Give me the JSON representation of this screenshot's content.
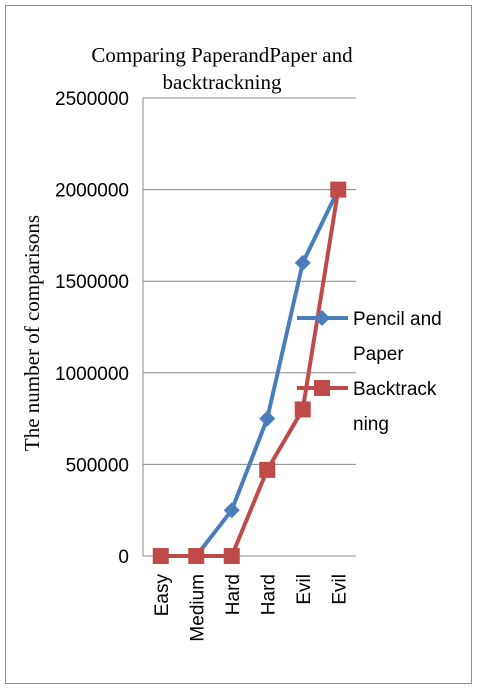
{
  "chart_data": {
    "type": "line",
    "title_lines": [
      "Comparing PaperandPaper and",
      "backtrackning"
    ],
    "ylabel": "The number of comparisons",
    "xlabel": "",
    "categories": [
      "Easy",
      "Medium",
      "Hard",
      "Hard",
      "Evil",
      "Evil"
    ],
    "y_ticks": [
      "2500000",
      "2000000",
      "1500000",
      "1000000",
      "500000",
      "0"
    ],
    "ylim": [
      0,
      2500000
    ],
    "grid": true,
    "legend_position": "right",
    "series": [
      {
        "name_lines": [
          "Pencil and",
          "Paper"
        ],
        "color": "#4a7ebb",
        "marker": "diamond",
        "values": [
          0,
          0,
          250000,
          750000,
          1600000,
          2000000
        ]
      },
      {
        "name_lines": [
          "Backtrack",
          "ning"
        ],
        "color": "#be4b48",
        "marker": "square",
        "values": [
          0,
          0,
          0,
          470000,
          800000,
          2000000
        ]
      }
    ]
  }
}
